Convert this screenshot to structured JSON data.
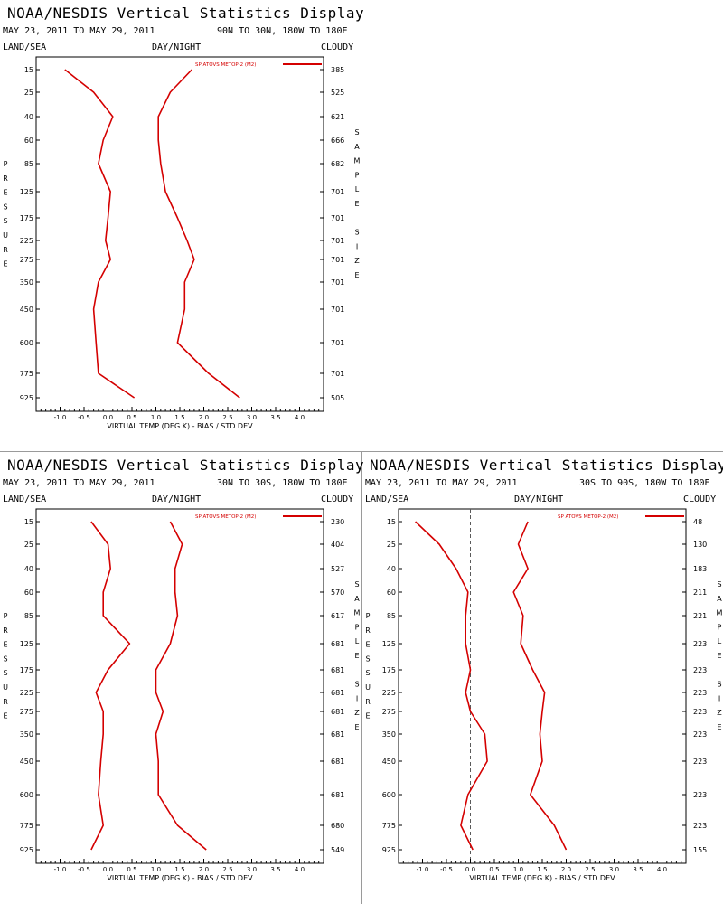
{
  "panels": [
    {
      "title": "NOAA/NESDIS Vertical Statistics Display",
      "dates": "MAY 23, 2011 TO MAY 29, 2011",
      "region": "90N TO 30N, 180W TO 180E",
      "land_sea": "LAND/SEA",
      "day_night": "DAY/NIGHT",
      "cloudy": "CLOUDY",
      "left_vertical_label": "PRESSURE",
      "right_vertical_label": "SAMPLE SIZE",
      "xlabel": "VIRTUAL TEMP (DEG K) - BIAS / STD DEV",
      "legend": "SP ATOVS METOP-2 (M2)",
      "pressure_levels": [
        "15",
        "25",
        "40",
        "60",
        "85",
        "125",
        "175",
        "225",
        "275",
        "350",
        "450",
        "600",
        "775",
        "925"
      ],
      "sample_sizes": [
        "385",
        "525",
        "621",
        "666",
        "682",
        "701",
        "701",
        "701",
        "701",
        "701",
        "701",
        "701",
        "701",
        "505"
      ],
      "x_ticks": [
        "-1.0",
        "-0.5",
        "0.0",
        "0.5",
        "1.0",
        "1.5",
        "2.0",
        "2.5",
        "3.0",
        "3.5",
        "4.0"
      ]
    },
    {
      "title": "NOAA/NESDIS Vertical Statistics Display",
      "dates": "MAY 23, 2011 TO MAY 29, 2011",
      "region": "30N TO 30S, 180W TO 180E",
      "land_sea": "LAND/SEA",
      "day_night": "DAY/NIGHT",
      "cloudy": "CLOUDY",
      "left_vertical_label": "PRESSURE",
      "right_vertical_label": "SAMPLE SIZE",
      "xlabel": "VIRTUAL TEMP (DEG K) - BIAS / STD DEV",
      "legend": "SP ATOVS METOP-2 (M2)",
      "pressure_levels": [
        "15",
        "25",
        "40",
        "60",
        "85",
        "125",
        "175",
        "225",
        "275",
        "350",
        "450",
        "600",
        "775",
        "925"
      ],
      "sample_sizes": [
        "230",
        "404",
        "527",
        "570",
        "617",
        "681",
        "681",
        "681",
        "681",
        "681",
        "681",
        "681",
        "680",
        "549"
      ],
      "x_ticks": [
        "-1.0",
        "-0.5",
        "0.0",
        "0.5",
        "1.0",
        "1.5",
        "2.0",
        "2.5",
        "3.0",
        "3.5",
        "4.0"
      ]
    },
    {
      "title": "NOAA/NESDIS Vertical Statistics Display",
      "dates": "MAY 23, 2011 TO MAY 29, 2011",
      "region": "30S TO 90S, 180W TO 180E",
      "land_sea": "LAND/SEA",
      "day_night": "DAY/NIGHT",
      "cloudy": "CLOUDY",
      "left_vertical_label": "PRESSURE",
      "right_vertical_label": "SAMPLE SIZE",
      "xlabel": "VIRTUAL TEMP (DEG K) - BIAS / STD DEV",
      "legend": "SP ATOVS METOP-2 (M2)",
      "pressure_levels": [
        "15",
        "25",
        "40",
        "60",
        "85",
        "125",
        "175",
        "225",
        "275",
        "350",
        "450",
        "600",
        "775",
        "925"
      ],
      "sample_sizes": [
        "48",
        "130",
        "183",
        "211",
        "221",
        "223",
        "223",
        "223",
        "223",
        "223",
        "223",
        "223",
        "223",
        "155"
      ],
      "x_ticks": [
        "-1.0",
        "-0.5",
        "0.0",
        "0.5",
        "1.0",
        "1.5",
        "2.0",
        "2.5",
        "3.0",
        "3.5",
        "4.0"
      ]
    }
  ],
  "colors": {
    "series": "#d40000",
    "zero_line": "#5a5a5a",
    "divider": "#9a9a9a"
  },
  "chart_data": [
    {
      "type": "line",
      "xlabel": "VIRTUAL TEMP (DEG K) - BIAS / STD DEV",
      "ylabel": "PRESSURE",
      "xlim": [
        -1.5,
        4.5
      ],
      "y": [
        "15",
        "25",
        "40",
        "60",
        "85",
        "125",
        "175",
        "225",
        "275",
        "350",
        "450",
        "600",
        "775",
        "925"
      ],
      "series": [
        {
          "name": "SP ATOVS METOP-2 (M2)",
          "values": [
            -0.9,
            -0.3,
            0.1,
            -0.1,
            -0.2,
            0.05,
            0.0,
            -0.05,
            0.05,
            -0.2,
            -0.3,
            -0.25,
            -0.2,
            0.55
          ]
        },
        {
          "values": [
            1.75,
            1.3,
            1.05,
            1.05,
            1.1,
            1.2,
            1.45,
            1.65,
            1.8,
            1.6,
            1.6,
            1.45,
            2.1,
            2.75
          ]
        }
      ]
    },
    {
      "type": "line",
      "xlabel": "VIRTUAL TEMP (DEG K) - BIAS / STD DEV",
      "ylabel": "PRESSURE",
      "xlim": [
        -1.5,
        4.5
      ],
      "y": [
        "15",
        "25",
        "40",
        "60",
        "85",
        "125",
        "175",
        "225",
        "275",
        "350",
        "450",
        "600",
        "775",
        "925"
      ],
      "series": [
        {
          "name": "SP ATOVS METOP-2 (M2)",
          "values": [
            -0.35,
            0.0,
            0.05,
            -0.1,
            -0.1,
            0.45,
            0.0,
            -0.25,
            -0.1,
            -0.1,
            -0.15,
            -0.2,
            -0.1,
            -0.35
          ]
        },
        {
          "values": [
            1.3,
            1.55,
            1.4,
            1.4,
            1.45,
            1.3,
            1.0,
            1.0,
            1.15,
            1.0,
            1.05,
            1.05,
            1.45,
            2.05
          ]
        }
      ]
    },
    {
      "type": "line",
      "xlabel": "VIRTUAL TEMP (DEG K) - BIAS / STD DEV",
      "ylabel": "PRESSURE",
      "xlim": [
        -1.5,
        4.5
      ],
      "y": [
        "15",
        "25",
        "40",
        "60",
        "85",
        "125",
        "175",
        "225",
        "275",
        "350",
        "450",
        "600",
        "775",
        "925"
      ],
      "series": [
        {
          "name": "SP ATOVS METOP-2 (M2)",
          "values": [
            -1.15,
            -0.65,
            -0.3,
            -0.05,
            -0.1,
            -0.1,
            0.0,
            -0.1,
            0.0,
            0.3,
            0.35,
            -0.05,
            -0.2,
            0.05
          ]
        },
        {
          "values": [
            1.2,
            1.0,
            1.2,
            0.9,
            1.1,
            1.05,
            1.3,
            1.55,
            1.5,
            1.45,
            1.5,
            1.25,
            1.75,
            2.0
          ]
        }
      ]
    }
  ]
}
